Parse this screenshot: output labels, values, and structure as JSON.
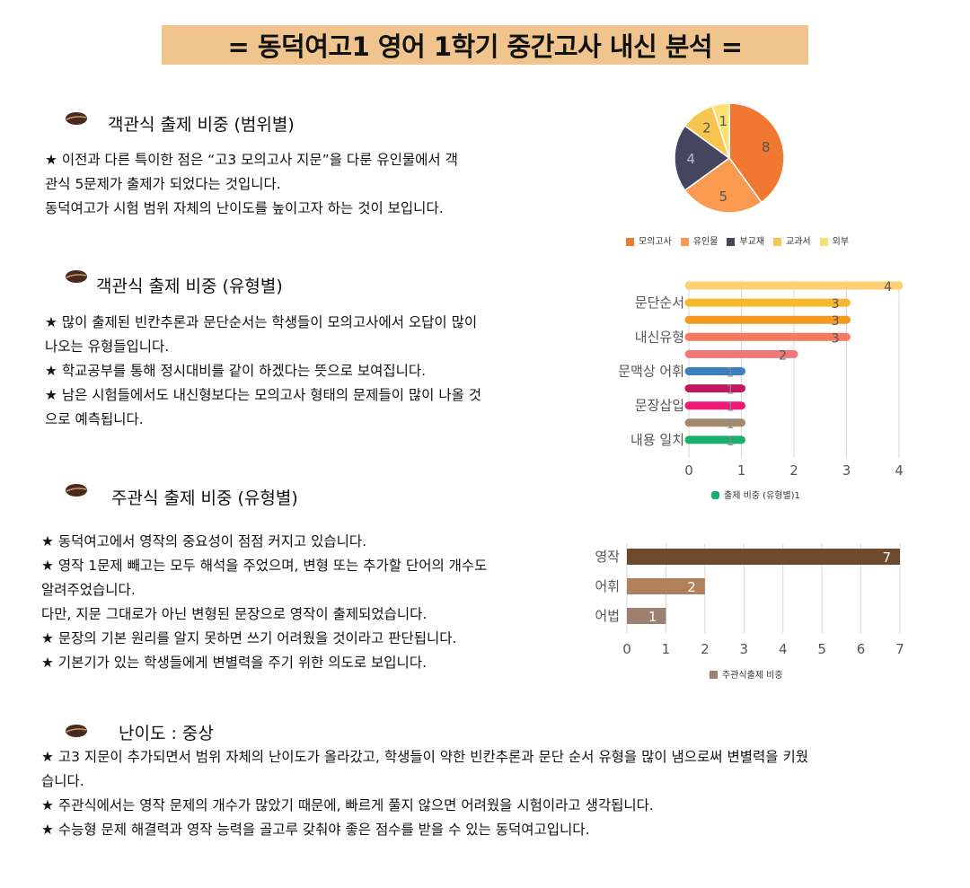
{
  "title": "= 동덕여고1 영어 1학기 중간고사 내신 분석 =",
  "sections": {
    "s1": {
      "heading": "객관식 출제 비중 (범위별)",
      "lines": [
        "★ 이전과 다른 특이한 점은 “고3 모의고사 지문”을 다룬 유인물에서 객",
        "관식 5문제가 출제가 되었다는 것입니다.",
        "동덕여고가 시험 범위 자체의 난이도를 높이고자 하는 것이 보입니다."
      ]
    },
    "s2": {
      "heading": "객관식 출제 비중 (유형별)",
      "lines": [
        "★ 많이 출제된 빈칸추론과 문단순서는 학생들이 모의고사에서 오답이 많이",
        "나오는 유형들입니다.",
        "★ 학교공부를 통해 정시대비를 같이 하겠다는 뜻으로 보여집니다.",
        "★ 남은 시험들에서도 내신형보다는 모의고사 형태의 문제들이 많이 나올 것",
        "으로 예측됩니다."
      ]
    },
    "s3": {
      "heading": "주관식 출제 비중 (유형별)",
      "lines": [
        "★ 동덕여고에서 영작의 중요성이 점점 커지고 있습니다.",
        "★ 영작 1문제 빼고는 모두 해석을 주었으며, 변형 또는 추가할 단어의 개수도",
        "알려주었습니다.",
        "다만, 지문 그대로가 아닌 변형된 문장으로 영작이 출제되었습니다.",
        "★ 문장의 기본 원리를 알지 못하면 쓰기 어려웠을 것이라고 판단됩니다.",
        "★ 기본기가 있는 학생들에게 변별력을 주기 위한 의도로 보입니다."
      ]
    },
    "s4": {
      "heading": "난이도 : 중상",
      "lines": [
        "★ 고3 지문이 추가되면서 범위 자체의 난이도가 올라갔고, 학생들이 약한 빈칸추론과 문단 순서 유형을 많이 냄으로써 변별력을 키웠",
        "습니다.",
        "★ 주관식에서는 영작 문제의 개수가 많았기 때문에, 빠르게 풀지 않으면 어려웠을 시험이라고 생각됩니다.",
        "★ 수능형 문제 해결력과 영작 능력을 골고루 갖춰야 좋은 점수를 받을 수 있는 동덕여고입니다."
      ]
    }
  },
  "chart_data": [
    {
      "type": "pie",
      "labels": [
        "모의고사",
        "유인물",
        "부교재",
        "교과서",
        "외부"
      ],
      "values": [
        8,
        5,
        4,
        2,
        1
      ],
      "colors": [
        "#f07830",
        "#fa9a50",
        "#454560",
        "#f7c550",
        "#fae070"
      ]
    },
    {
      "type": "bar",
      "orientation": "horizontal",
      "categories": [
        "",
        "문단순서",
        "",
        "내신유형",
        "",
        "문맥상 어휘",
        "",
        "문장삽입",
        "",
        "내용 일치"
      ],
      "values": [
        4,
        3,
        3,
        3,
        2,
        1,
        1,
        1,
        1,
        1
      ],
      "colors": [
        "#fcd070",
        "#f7b830",
        "#f59a20",
        "#f47a60",
        "#ef7878",
        "#3a7fbf",
        "#c0185a",
        "#ee1a78",
        "#a08a70",
        "#1aae70"
      ],
      "xticks": [
        "0",
        "1",
        "2",
        "3",
        "4"
      ],
      "xlim": [
        0,
        4
      ],
      "legend": "출제 비중 (유형별)1",
      "legend_color": "#1aae70"
    },
    {
      "type": "bar",
      "orientation": "horizontal",
      "categories": [
        "영작",
        "어휘",
        "어법"
      ],
      "values": [
        7,
        2,
        1
      ],
      "colors": [
        "#6b4a30",
        "#b0805a",
        "#9e8070"
      ],
      "xticks": [
        "0",
        "1",
        "2",
        "3",
        "4",
        "5",
        "6",
        "7"
      ],
      "xlim": [
        0,
        7
      ],
      "legend": "주관식출제 비중",
      "legend_color": "#9e8070"
    }
  ]
}
